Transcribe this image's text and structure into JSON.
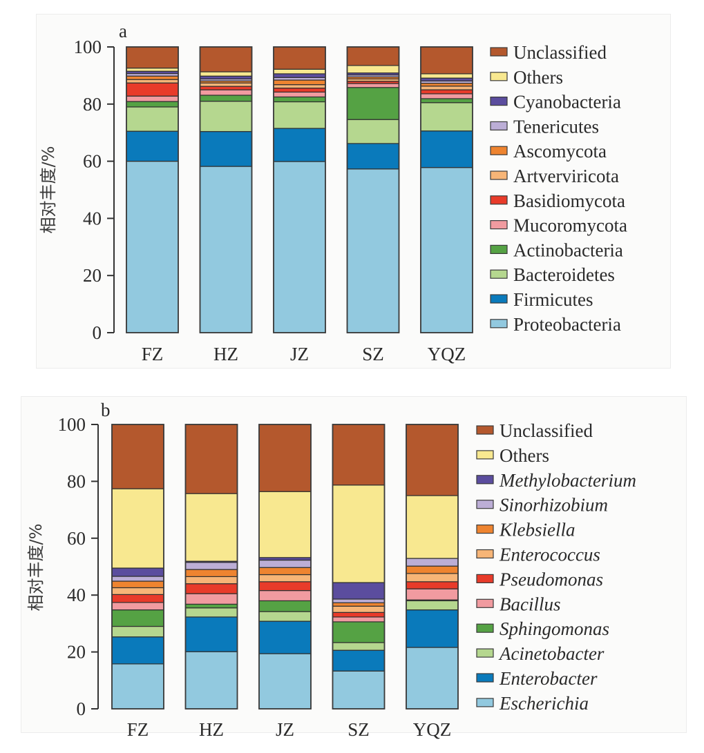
{
  "chart_data": [
    {
      "id": "a",
      "type": "bar",
      "stacked": true,
      "panel_label": "a",
      "title": "",
      "xlabel": "",
      "ylabel": "相对丰度/%",
      "ylim": [
        0,
        100
      ],
      "yticks": [
        0,
        20,
        40,
        60,
        80,
        100
      ],
      "grid": false,
      "legend_position": "right",
      "legend_italic": false,
      "categories": [
        "FZ",
        "HZ",
        "JZ",
        "SZ",
        "YQZ"
      ],
      "series": [
        {
          "name": "Proteobacteria",
          "color": "#92c9df",
          "values": [
            60.0,
            58.2,
            59.9,
            57.3,
            57.8
          ]
        },
        {
          "name": "Firmicutes",
          "color": "#0a7abb",
          "values": [
            10.5,
            12.2,
            11.6,
            8.9,
            12.8
          ]
        },
        {
          "name": "Bacteroidetes",
          "color": "#b5d78f",
          "values": [
            8.5,
            10.6,
            9.3,
            8.4,
            9.9
          ]
        },
        {
          "name": "Actinobacteria",
          "color": "#55a244",
          "values": [
            1.9,
            2.1,
            1.7,
            11.2,
            1.4
          ]
        },
        {
          "name": "Mucoromycota",
          "color": "#f19ba0",
          "values": [
            1.9,
            1.9,
            1.7,
            1.4,
            1.7
          ]
        },
        {
          "name": "Basidiomycota",
          "color": "#e83b2a",
          "values": [
            4.6,
            1.2,
            1.4,
            0.8,
            1.4
          ]
        },
        {
          "name": "Artverviricota",
          "color": "#f7b577",
          "values": [
            1.2,
            1.2,
            1.2,
            0.8,
            1.3
          ]
        },
        {
          "name": "Ascomycota",
          "color": "#ee8430",
          "values": [
            1.2,
            0.7,
            1.6,
            0.7,
            1.0
          ]
        },
        {
          "name": "Tenericutes",
          "color": "#bcaed6",
          "values": [
            0.9,
            0.7,
            0.9,
            0.7,
            0.8
          ]
        },
        {
          "name": "Cyanobacteria",
          "color": "#5b4d9e",
          "values": [
            0.8,
            1.0,
            1.3,
            0.7,
            1.0
          ]
        },
        {
          "name": "Others",
          "color": "#f8e890",
          "values": [
            1.1,
            1.5,
            1.6,
            2.6,
            1.5
          ]
        },
        {
          "name": "Unclassified",
          "color": "#b4582d",
          "values": [
            7.4,
            8.7,
            7.8,
            6.5,
            9.4
          ]
        }
      ]
    },
    {
      "id": "b",
      "type": "bar",
      "stacked": true,
      "panel_label": "b",
      "title": "",
      "xlabel": "",
      "ylabel": "相对丰度/%",
      "ylim": [
        0,
        100
      ],
      "yticks": [
        0,
        20,
        40,
        60,
        80,
        100
      ],
      "grid": false,
      "legend_position": "right",
      "legend_italic": true,
      "categories": [
        "FZ",
        "HZ",
        "JZ",
        "SZ",
        "YQZ"
      ],
      "series": [
        {
          "name": "Escherichia",
          "color": "#92c9df",
          "values": [
            15.8,
            20.1,
            19.4,
            13.3,
            21.6
          ]
        },
        {
          "name": "Enterobacter",
          "color": "#0a7abb",
          "values": [
            9.5,
            12.2,
            11.4,
            7.3,
            13.2
          ]
        },
        {
          "name": "Acinetobacter",
          "color": "#b5d78f",
          "values": [
            3.7,
            3.2,
            3.4,
            2.7,
            3.2
          ]
        },
        {
          "name": "Sphingomonas",
          "color": "#55a244",
          "values": [
            5.8,
            1.3,
            3.8,
            7.3,
            0.3
          ]
        },
        {
          "name": "Bacillus",
          "color": "#f19ba0",
          "values": [
            2.6,
            3.7,
            3.6,
            1.7,
            3.9
          ]
        },
        {
          "name": "Pseudomonas",
          "color": "#e83b2a",
          "values": [
            2.8,
            3.5,
            3.1,
            1.6,
            2.5
          ]
        },
        {
          "name": "Enterococcus",
          "color": "#f7b577",
          "values": [
            2.4,
            2.5,
            2.5,
            2.2,
            2.9
          ]
        },
        {
          "name": "Klebsiella",
          "color": "#ee8430",
          "values": [
            2.3,
            2.5,
            2.5,
            1.2,
            2.6
          ]
        },
        {
          "name": "Sinorhizobium",
          "color": "#bcaed6",
          "values": [
            1.7,
            2.5,
            2.6,
            1.3,
            2.7
          ]
        },
        {
          "name": "Methylobacterium",
          "color": "#5b4d9e",
          "values": [
            2.9,
            0.4,
            0.9,
            5.8,
            0.0
          ]
        },
        {
          "name": "Others",
          "color": "#f8e890",
          "values": [
            27.9,
            23.8,
            23.2,
            34.3,
            22.1
          ]
        },
        {
          "name": "Unclassified",
          "color": "#b4582d",
          "values": [
            22.6,
            24.3,
            23.6,
            21.3,
            25.0
          ]
        }
      ]
    }
  ]
}
